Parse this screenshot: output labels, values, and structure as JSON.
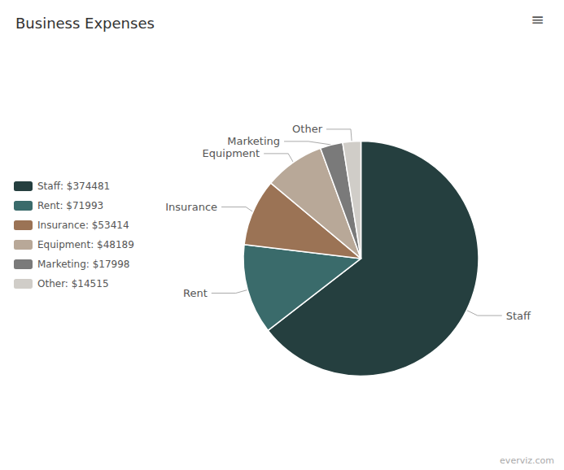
{
  "chart_data": {
    "type": "pie",
    "title": "Business Expenses",
    "categories": [
      "Staff",
      "Rent",
      "Insurance",
      "Equipment",
      "Marketing",
      "Other"
    ],
    "values": [
      374481,
      71993,
      53414,
      48189,
      17998,
      14515
    ],
    "colors": [
      "#253f3f",
      "#3a6b6b",
      "#9b7355",
      "#b8a898",
      "#7a7a7a",
      "#d0cdc8"
    ],
    "legend_labels": [
      "Staff: $374481",
      "Rent: $71993",
      "Insurance: $53414",
      "Equipment: $48189",
      "Marketing: $17998",
      "Other: $14515"
    ],
    "legend": "left",
    "annotations": [
      "≡",
      "everviz.com"
    ]
  }
}
